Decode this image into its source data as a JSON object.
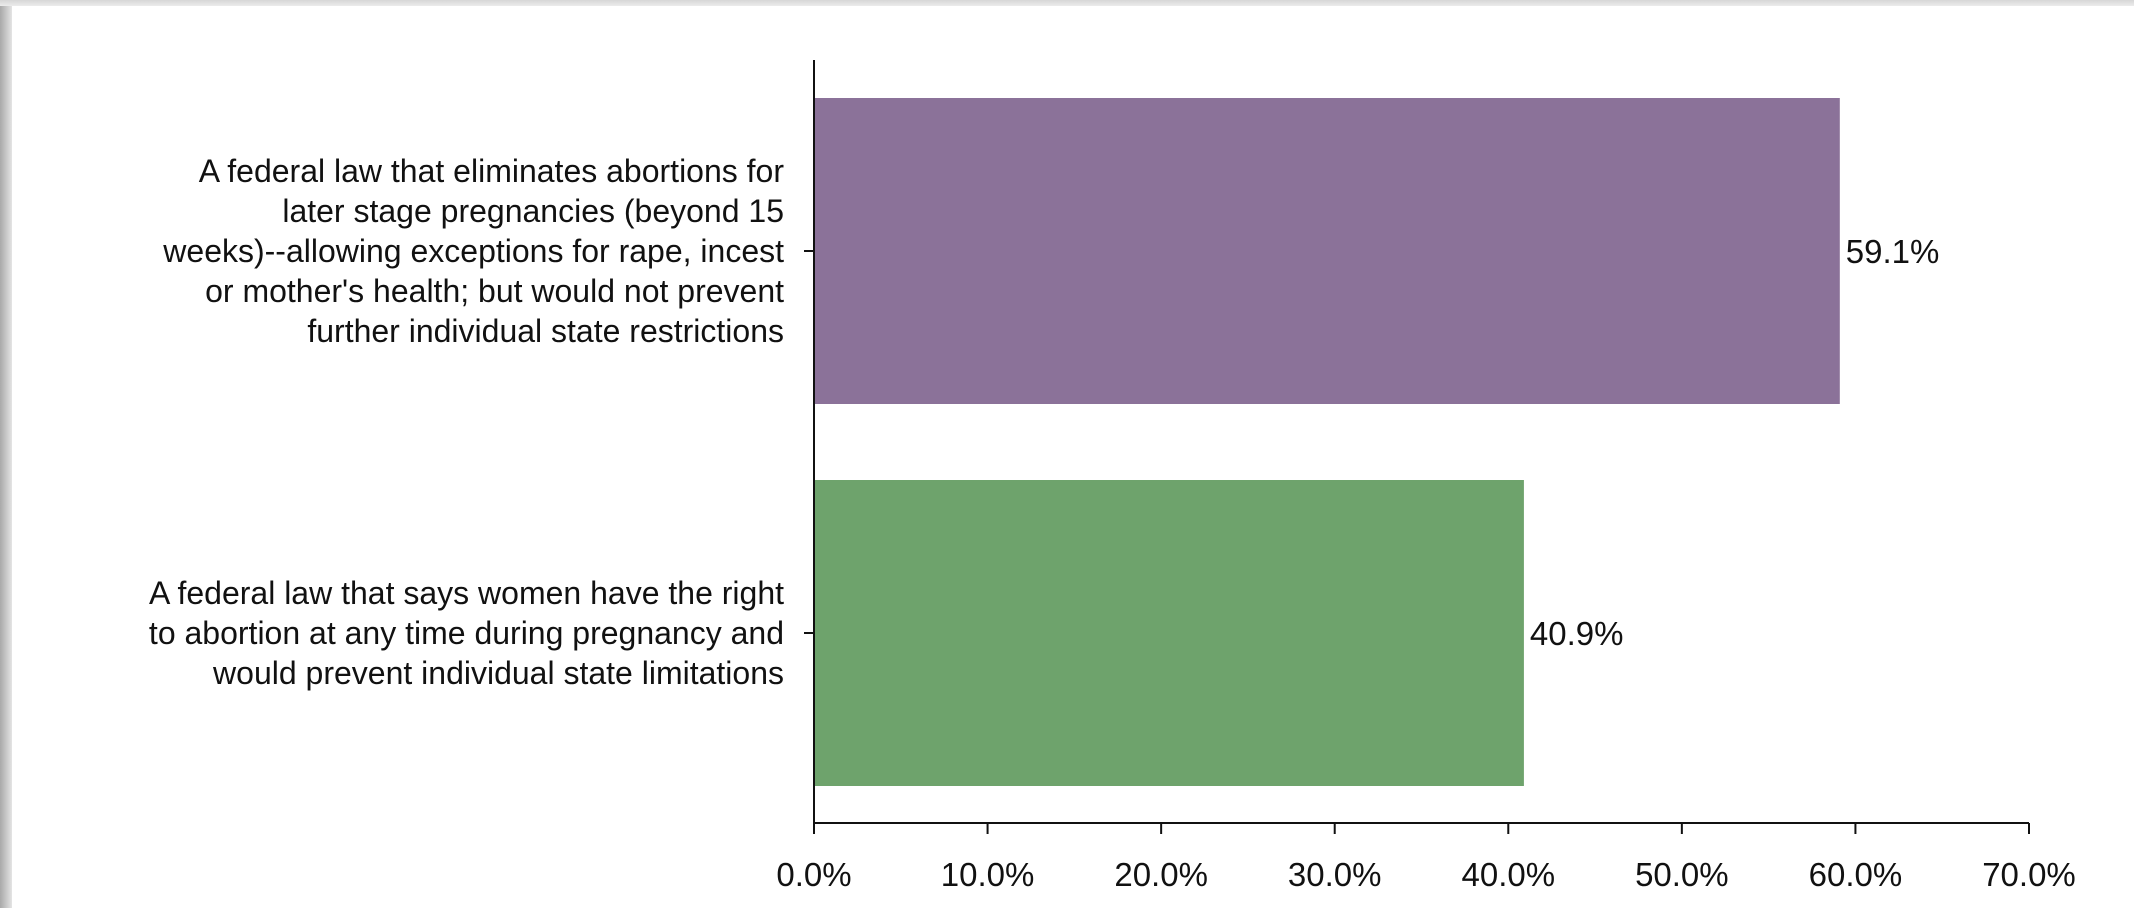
{
  "chart_data": {
    "type": "bar",
    "orientation": "horizontal",
    "categories": [
      [
        "A federal law that eliminates abortions for",
        "later stage pregnancies (beyond 15",
        "weeks)--allowing exceptions for rape, incest",
        "or mother's health; but would not prevent",
        "further individual state restrictions"
      ],
      [
        "A federal law that says women have the right",
        "to abortion at any time during pregnancy and",
        "would prevent individual state limitations"
      ]
    ],
    "values": [
      59.1,
      40.9
    ],
    "data_labels": [
      "59.1%",
      "40.9%"
    ],
    "colors": [
      "#8b7299",
      "#6ea36c"
    ],
    "xlim": [
      0,
      70
    ],
    "xticks": [
      0,
      10,
      20,
      30,
      40,
      50,
      60,
      70
    ],
    "xtick_labels": [
      "0.0%",
      "10.0%",
      "20.0%",
      "30.0%",
      "40.0%",
      "50.0%",
      "60.0%",
      "70.0%"
    ],
    "grid": false,
    "title": "",
    "xlabel": "",
    "ylabel": ""
  }
}
